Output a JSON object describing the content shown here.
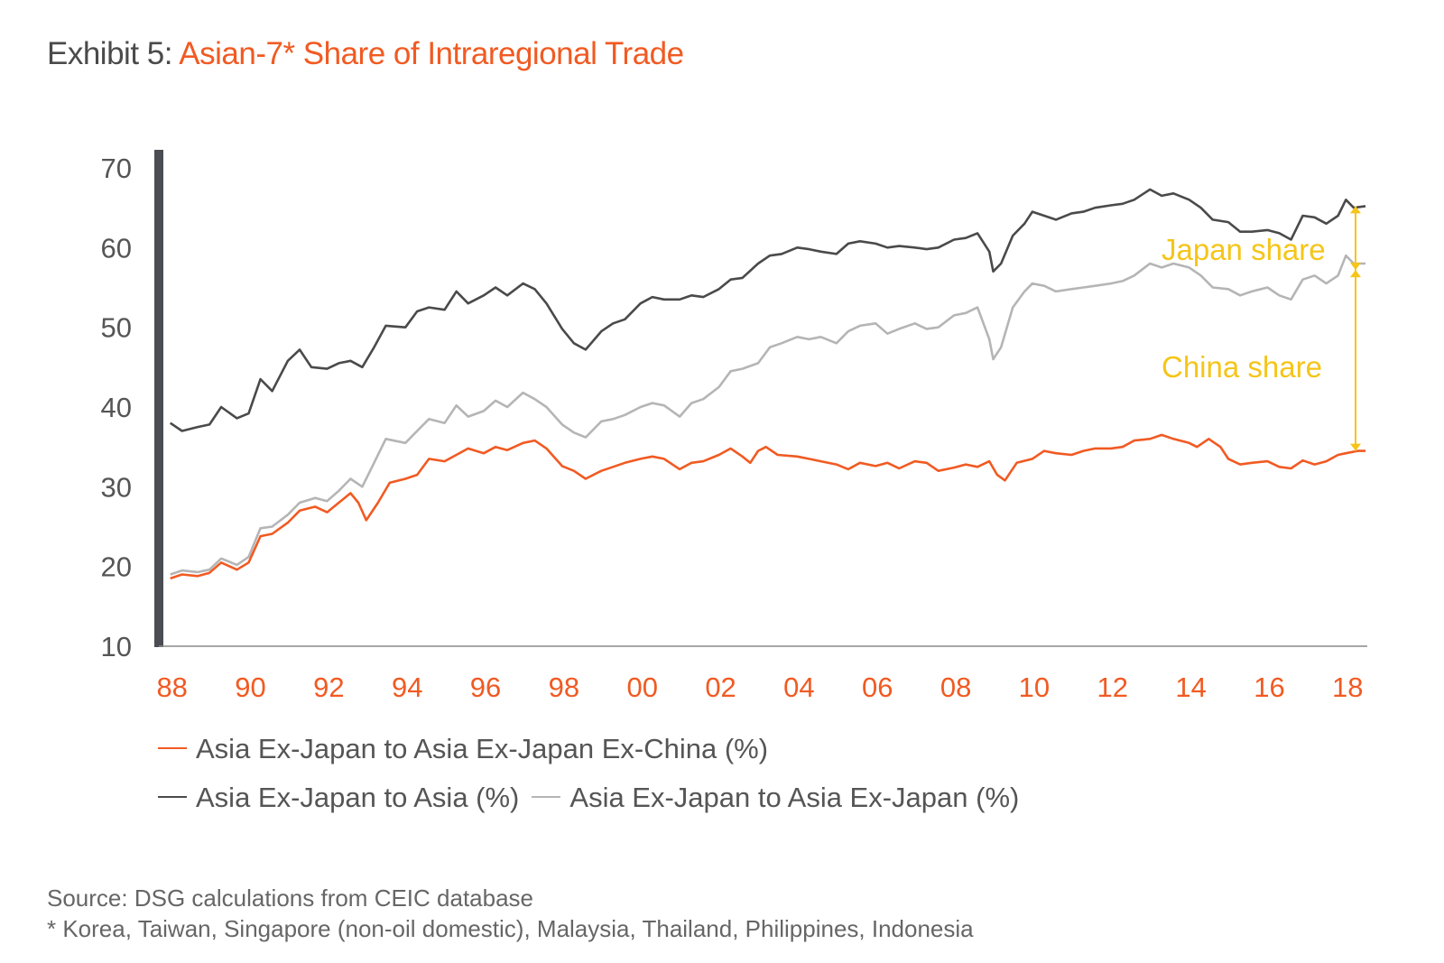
{
  "title": {
    "prefix": "Exhibit 5:",
    "main": "Asian-7* Share of Intraregional Trade"
  },
  "source": "Source: DSG calculations from CEIC database",
  "footnote": "* Korea, Taiwan, Singapore (non-oil domestic), Malaysia, Thailand, Philippines, Indonesia",
  "annotations": {
    "japan": "Japan share",
    "china": "China share",
    "color": "#f5c518"
  },
  "chart_data": {
    "type": "line",
    "x_label_format": "two-digit year",
    "xticks": [
      "88",
      "90",
      "92",
      "94",
      "96",
      "98",
      "00",
      "02",
      "04",
      "06",
      "08",
      "10",
      "12",
      "14",
      "16",
      "18"
    ],
    "yticks": [
      10,
      20,
      30,
      40,
      50,
      60,
      70
    ],
    "ylim": [
      10,
      70
    ],
    "xlim": [
      1987.8,
      2018.5
    ],
    "grid": false,
    "legend_position": "bottom",
    "series": [
      {
        "name": "Asia Ex-Japan to Asia Ex-Japan Ex-China (%)",
        "color": "#f15a22",
        "points": [
          [
            1988.0,
            18.5
          ],
          [
            1988.3,
            19.0
          ],
          [
            1988.7,
            18.8
          ],
          [
            1989.0,
            19.2
          ],
          [
            1989.3,
            20.5
          ],
          [
            1989.7,
            19.6
          ],
          [
            1990.0,
            20.5
          ],
          [
            1990.3,
            23.8
          ],
          [
            1990.6,
            24.1
          ],
          [
            1991.0,
            25.5
          ],
          [
            1991.3,
            27.0
          ],
          [
            1991.7,
            27.5
          ],
          [
            1992.0,
            26.8
          ],
          [
            1992.3,
            28.0
          ],
          [
            1992.6,
            29.2
          ],
          [
            1992.8,
            28.0
          ],
          [
            1993.0,
            25.8
          ],
          [
            1993.3,
            28.0
          ],
          [
            1993.6,
            30.5
          ],
          [
            1994.0,
            31.0
          ],
          [
            1994.3,
            31.5
          ],
          [
            1994.6,
            33.5
          ],
          [
            1995.0,
            33.2
          ],
          [
            1995.3,
            34.0
          ],
          [
            1995.6,
            34.8
          ],
          [
            1996.0,
            34.2
          ],
          [
            1996.3,
            35.0
          ],
          [
            1996.6,
            34.6
          ],
          [
            1997.0,
            35.5
          ],
          [
            1997.3,
            35.8
          ],
          [
            1997.6,
            34.8
          ],
          [
            1998.0,
            32.6
          ],
          [
            1998.3,
            32.0
          ],
          [
            1998.6,
            31.0
          ],
          [
            1999.0,
            32.0
          ],
          [
            1999.3,
            32.5
          ],
          [
            1999.6,
            33.0
          ],
          [
            2000.0,
            33.5
          ],
          [
            2000.3,
            33.8
          ],
          [
            2000.6,
            33.5
          ],
          [
            2001.0,
            32.2
          ],
          [
            2001.3,
            33.0
          ],
          [
            2001.6,
            33.2
          ],
          [
            2002.0,
            34.0
          ],
          [
            2002.3,
            34.8
          ],
          [
            2002.6,
            33.8
          ],
          [
            2002.8,
            33.0
          ],
          [
            2003.0,
            34.5
          ],
          [
            2003.2,
            35.0
          ],
          [
            2003.5,
            34.0
          ],
          [
            2004.0,
            33.8
          ],
          [
            2004.3,
            33.5
          ],
          [
            2004.6,
            33.2
          ],
          [
            2005.0,
            32.8
          ],
          [
            2005.3,
            32.2
          ],
          [
            2005.6,
            33.0
          ],
          [
            2006.0,
            32.6
          ],
          [
            2006.3,
            33.0
          ],
          [
            2006.6,
            32.3
          ],
          [
            2007.0,
            33.2
          ],
          [
            2007.3,
            33.0
          ],
          [
            2007.6,
            32.0
          ],
          [
            2008.0,
            32.4
          ],
          [
            2008.3,
            32.8
          ],
          [
            2008.6,
            32.5
          ],
          [
            2008.9,
            33.2
          ],
          [
            2009.1,
            31.5
          ],
          [
            2009.3,
            30.8
          ],
          [
            2009.6,
            33.0
          ],
          [
            2010.0,
            33.5
          ],
          [
            2010.3,
            34.5
          ],
          [
            2010.6,
            34.2
          ],
          [
            2011.0,
            34.0
          ],
          [
            2011.3,
            34.5
          ],
          [
            2011.6,
            34.8
          ],
          [
            2012.0,
            34.8
          ],
          [
            2012.3,
            35.0
          ],
          [
            2012.6,
            35.8
          ],
          [
            2013.0,
            36.0
          ],
          [
            2013.3,
            36.5
          ],
          [
            2013.6,
            36.0
          ],
          [
            2014.0,
            35.5
          ],
          [
            2014.2,
            35.0
          ],
          [
            2014.5,
            36.0
          ],
          [
            2014.8,
            35.0
          ],
          [
            2015.0,
            33.5
          ],
          [
            2015.3,
            32.8
          ],
          [
            2015.6,
            33.0
          ],
          [
            2016.0,
            33.2
          ],
          [
            2016.3,
            32.5
          ],
          [
            2016.6,
            32.3
          ],
          [
            2016.9,
            33.3
          ],
          [
            2017.2,
            32.8
          ],
          [
            2017.5,
            33.2
          ],
          [
            2017.8,
            34.0
          ],
          [
            2018.0,
            34.2
          ],
          [
            2018.3,
            34.5
          ],
          [
            2018.5,
            34.5
          ]
        ]
      },
      {
        "name": "Asia Ex-Japan to Asia (%)",
        "color": "#4a4a4a",
        "points": [
          [
            1988.0,
            38.0
          ],
          [
            1988.3,
            37.0
          ],
          [
            1988.7,
            37.5
          ],
          [
            1989.0,
            37.8
          ],
          [
            1989.3,
            40.0
          ],
          [
            1989.7,
            38.6
          ],
          [
            1990.0,
            39.2
          ],
          [
            1990.3,
            43.5
          ],
          [
            1990.6,
            42.0
          ],
          [
            1991.0,
            45.8
          ],
          [
            1991.3,
            47.2
          ],
          [
            1991.6,
            45.0
          ],
          [
            1992.0,
            44.8
          ],
          [
            1992.3,
            45.5
          ],
          [
            1992.6,
            45.8
          ],
          [
            1992.9,
            45.0
          ],
          [
            1993.2,
            47.5
          ],
          [
            1993.5,
            50.2
          ],
          [
            1994.0,
            50.0
          ],
          [
            1994.3,
            52.0
          ],
          [
            1994.6,
            52.5
          ],
          [
            1995.0,
            52.2
          ],
          [
            1995.3,
            54.5
          ],
          [
            1995.6,
            53.0
          ],
          [
            1996.0,
            54.0
          ],
          [
            1996.3,
            55.0
          ],
          [
            1996.6,
            54.0
          ],
          [
            1997.0,
            55.5
          ],
          [
            1997.3,
            54.8
          ],
          [
            1997.6,
            53.0
          ],
          [
            1998.0,
            49.8
          ],
          [
            1998.3,
            48.0
          ],
          [
            1998.6,
            47.2
          ],
          [
            1999.0,
            49.5
          ],
          [
            1999.3,
            50.5
          ],
          [
            1999.6,
            51.0
          ],
          [
            2000.0,
            53.0
          ],
          [
            2000.3,
            53.8
          ],
          [
            2000.6,
            53.5
          ],
          [
            2001.0,
            53.5
          ],
          [
            2001.3,
            54.0
          ],
          [
            2001.6,
            53.8
          ],
          [
            2002.0,
            54.8
          ],
          [
            2002.3,
            56.0
          ],
          [
            2002.6,
            56.2
          ],
          [
            2003.0,
            58.0
          ],
          [
            2003.3,
            59.0
          ],
          [
            2003.6,
            59.2
          ],
          [
            2004.0,
            60.0
          ],
          [
            2004.3,
            59.8
          ],
          [
            2004.6,
            59.5
          ],
          [
            2005.0,
            59.2
          ],
          [
            2005.3,
            60.5
          ],
          [
            2005.6,
            60.8
          ],
          [
            2006.0,
            60.5
          ],
          [
            2006.3,
            60.0
          ],
          [
            2006.6,
            60.2
          ],
          [
            2007.0,
            60.0
          ],
          [
            2007.3,
            59.8
          ],
          [
            2007.6,
            60.0
          ],
          [
            2008.0,
            61.0
          ],
          [
            2008.3,
            61.2
          ],
          [
            2008.6,
            61.8
          ],
          [
            2008.9,
            59.5
          ],
          [
            2009.0,
            57.0
          ],
          [
            2009.2,
            58.0
          ],
          [
            2009.5,
            61.5
          ],
          [
            2009.8,
            63.0
          ],
          [
            2010.0,
            64.5
          ],
          [
            2010.3,
            64.0
          ],
          [
            2010.6,
            63.5
          ],
          [
            2011.0,
            64.3
          ],
          [
            2011.3,
            64.5
          ],
          [
            2011.6,
            65.0
          ],
          [
            2012.0,
            65.3
          ],
          [
            2012.3,
            65.5
          ],
          [
            2012.6,
            66.0
          ],
          [
            2013.0,
            67.3
          ],
          [
            2013.3,
            66.5
          ],
          [
            2013.6,
            66.8
          ],
          [
            2014.0,
            66.0
          ],
          [
            2014.3,
            65.0
          ],
          [
            2014.6,
            63.5
          ],
          [
            2015.0,
            63.2
          ],
          [
            2015.3,
            62.0
          ],
          [
            2015.6,
            62.0
          ],
          [
            2016.0,
            62.2
          ],
          [
            2016.3,
            61.8
          ],
          [
            2016.6,
            61.0
          ],
          [
            2016.9,
            64.0
          ],
          [
            2017.2,
            63.8
          ],
          [
            2017.5,
            63.0
          ],
          [
            2017.8,
            64.0
          ],
          [
            2018.0,
            66.0
          ],
          [
            2018.2,
            65.0
          ],
          [
            2018.5,
            65.2
          ]
        ]
      },
      {
        "name": "Asia Ex-Japan to Asia Ex-Japan (%)",
        "color": "#b5b5b5",
        "points": [
          [
            1988.0,
            19.0
          ],
          [
            1988.3,
            19.5
          ],
          [
            1988.7,
            19.3
          ],
          [
            1989.0,
            19.6
          ],
          [
            1989.3,
            21.0
          ],
          [
            1989.7,
            20.2
          ],
          [
            1990.0,
            21.2
          ],
          [
            1990.3,
            24.8
          ],
          [
            1990.6,
            25.0
          ],
          [
            1991.0,
            26.5
          ],
          [
            1991.3,
            28.0
          ],
          [
            1991.7,
            28.6
          ],
          [
            1992.0,
            28.2
          ],
          [
            1992.3,
            29.5
          ],
          [
            1992.6,
            31.0
          ],
          [
            1992.9,
            30.0
          ],
          [
            1993.2,
            33.0
          ],
          [
            1993.5,
            36.0
          ],
          [
            1994.0,
            35.5
          ],
          [
            1994.3,
            37.0
          ],
          [
            1994.6,
            38.5
          ],
          [
            1995.0,
            38.0
          ],
          [
            1995.3,
            40.2
          ],
          [
            1995.6,
            38.8
          ],
          [
            1996.0,
            39.5
          ],
          [
            1996.3,
            40.8
          ],
          [
            1996.6,
            40.0
          ],
          [
            1997.0,
            41.8
          ],
          [
            1997.3,
            41.0
          ],
          [
            1997.6,
            40.0
          ],
          [
            1998.0,
            37.8
          ],
          [
            1998.3,
            36.8
          ],
          [
            1998.6,
            36.2
          ],
          [
            1999.0,
            38.2
          ],
          [
            1999.3,
            38.5
          ],
          [
            1999.6,
            39.0
          ],
          [
            2000.0,
            40.0
          ],
          [
            2000.3,
            40.5
          ],
          [
            2000.6,
            40.2
          ],
          [
            2001.0,
            38.8
          ],
          [
            2001.3,
            40.5
          ],
          [
            2001.6,
            41.0
          ],
          [
            2002.0,
            42.5
          ],
          [
            2002.3,
            44.5
          ],
          [
            2002.6,
            44.8
          ],
          [
            2003.0,
            45.5
          ],
          [
            2003.3,
            47.5
          ],
          [
            2003.6,
            48.0
          ],
          [
            2004.0,
            48.8
          ],
          [
            2004.3,
            48.5
          ],
          [
            2004.6,
            48.8
          ],
          [
            2005.0,
            48.0
          ],
          [
            2005.3,
            49.5
          ],
          [
            2005.6,
            50.2
          ],
          [
            2006.0,
            50.5
          ],
          [
            2006.3,
            49.2
          ],
          [
            2006.6,
            49.8
          ],
          [
            2007.0,
            50.5
          ],
          [
            2007.3,
            49.8
          ],
          [
            2007.6,
            50.0
          ],
          [
            2008.0,
            51.5
          ],
          [
            2008.3,
            51.8
          ],
          [
            2008.6,
            52.5
          ],
          [
            2008.9,
            48.5
          ],
          [
            2009.0,
            46.0
          ],
          [
            2009.2,
            47.5
          ],
          [
            2009.5,
            52.5
          ],
          [
            2009.8,
            54.5
          ],
          [
            2010.0,
            55.5
          ],
          [
            2010.3,
            55.2
          ],
          [
            2010.6,
            54.5
          ],
          [
            2011.0,
            54.8
          ],
          [
            2011.3,
            55.0
          ],
          [
            2011.6,
            55.2
          ],
          [
            2012.0,
            55.5
          ],
          [
            2012.3,
            55.8
          ],
          [
            2012.6,
            56.5
          ],
          [
            2013.0,
            58.0
          ],
          [
            2013.3,
            57.5
          ],
          [
            2013.6,
            58.0
          ],
          [
            2014.0,
            57.5
          ],
          [
            2014.3,
            56.5
          ],
          [
            2014.6,
            55.0
          ],
          [
            2015.0,
            54.8
          ],
          [
            2015.3,
            54.0
          ],
          [
            2015.6,
            54.5
          ],
          [
            2016.0,
            55.0
          ],
          [
            2016.3,
            54.0
          ],
          [
            2016.6,
            53.5
          ],
          [
            2016.9,
            56.0
          ],
          [
            2017.2,
            56.5
          ],
          [
            2017.5,
            55.5
          ],
          [
            2017.8,
            56.5
          ],
          [
            2018.0,
            59.0
          ],
          [
            2018.2,
            58.0
          ],
          [
            2018.5,
            58.0
          ]
        ]
      }
    ]
  }
}
